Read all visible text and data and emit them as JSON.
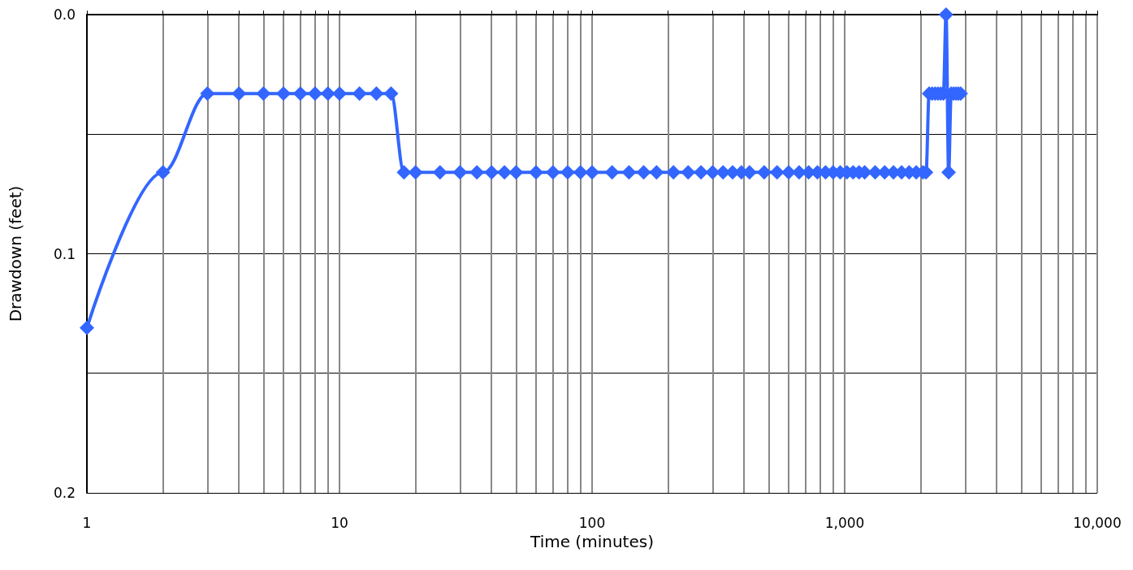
{
  "chart_data": {
    "type": "line",
    "xlabel": "Time (minutes)",
    "ylabel": "Drawdown (feet)",
    "x": [
      1,
      2,
      3,
      4,
      5,
      6,
      7,
      8,
      9,
      10,
      12,
      14,
      16,
      18,
      20,
      25,
      30,
      35,
      40,
      45,
      50,
      60,
      70,
      80,
      90,
      100,
      120,
      140,
      160,
      180,
      210,
      240,
      270,
      300,
      330,
      360,
      390,
      420,
      480,
      540,
      600,
      660,
      720,
      780,
      840,
      900,
      960,
      1020,
      1080,
      1140,
      1200,
      1320,
      1440,
      1560,
      1680,
      1800,
      1920,
      2040,
      2100,
      2160,
      2220,
      2280,
      2340,
      2400,
      2460,
      2520,
      2580,
      2640,
      2700,
      2760,
      2820,
      2880
    ],
    "series": [
      {
        "color": "#3366ff",
        "values": [
          0.131,
          0.066,
          0.033,
          0.033,
          0.033,
          0.033,
          0.033,
          0.033,
          0.033,
          0.033,
          0.033,
          0.033,
          0.033,
          0.066,
          0.066,
          0.066,
          0.066,
          0.066,
          0.066,
          0.066,
          0.066,
          0.066,
          0.066,
          0.066,
          0.066,
          0.066,
          0.066,
          0.066,
          0.066,
          0.066,
          0.066,
          0.066,
          0.066,
          0.066,
          0.066,
          0.066,
          0.066,
          0.066,
          0.066,
          0.066,
          0.066,
          0.066,
          0.066,
          0.066,
          0.066,
          0.066,
          0.066,
          0.066,
          0.066,
          0.066,
          0.066,
          0.066,
          0.066,
          0.066,
          0.066,
          0.066,
          0.066,
          0.066,
          0.066,
          0.033,
          0.033,
          0.033,
          0.033,
          0.033,
          0.033,
          0,
          0.066,
          0.033,
          0.033,
          0.033,
          0.033,
          0.033
        ]
      }
    ],
    "log": "x",
    "xlim": [
      1,
      10000
    ],
    "xticks": [
      1,
      {
        "value": 2,
        "label": null
      },
      {
        "value": 3,
        "label": null
      },
      {
        "value": 4,
        "label": null
      },
      {
        "value": 5,
        "label": null
      },
      {
        "value": 6,
        "label": null
      },
      {
        "value": 7,
        "label": null
      },
      {
        "value": 8,
        "label": null
      },
      {
        "value": 9,
        "label": null
      },
      10,
      {
        "value": 20,
        "label": null
      },
      {
        "value": 30,
        "label": null
      },
      {
        "value": 40,
        "label": null
      },
      {
        "value": 50,
        "label": null
      },
      {
        "value": 60,
        "label": null
      },
      {
        "value": 70,
        "label": null
      },
      {
        "value": 80,
        "label": null
      },
      {
        "value": 90,
        "label": null
      },
      100,
      {
        "value": 200,
        "label": null
      },
      {
        "value": 300,
        "label": null
      },
      {
        "value": 400,
        "label": null
      },
      {
        "value": 500,
        "label": null
      },
      {
        "value": 600,
        "label": null
      },
      {
        "value": 700,
        "label": null
      },
      {
        "value": 800,
        "label": null
      },
      {
        "value": 900,
        "label": null
      },
      {
        "value": 1000,
        "label": "1,000"
      },
      {
        "value": 2000,
        "label": null
      },
      {
        "value": 3000,
        "label": null
      },
      {
        "value": 4000,
        "label": null
      },
      {
        "value": 5000,
        "label": null
      },
      {
        "value": 6000,
        "label": null
      },
      {
        "value": 7000,
        "label": null
      },
      {
        "value": 8000,
        "label": null
      },
      {
        "value": 9000,
        "label": null
      },
      {
        "value": 10000,
        "label": "10,000"
      }
    ],
    "ylim": [
      0.2,
      0
    ],
    "yticks": [
      {
        "value": 0,
        "label": "0.0"
      },
      {
        "value": 0.05,
        "label": null
      },
      0.1,
      {
        "value": 0.15,
        "label": null
      },
      0.2
    ],
    "grid": true,
    "marker": "diamond",
    "line_style": "solid"
  }
}
